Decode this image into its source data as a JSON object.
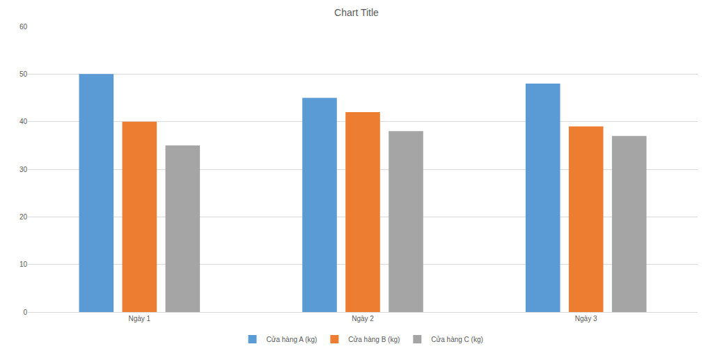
{
  "chart_data": {
    "type": "bar",
    "title": "Chart Title",
    "categories": [
      "Ngày 1",
      "Ngày 2",
      "Ngày 3"
    ],
    "series": [
      {
        "name": "Cửa hàng A (kg)",
        "color": "#5b9bd5",
        "values": [
          50,
          45,
          48
        ]
      },
      {
        "name": "Cửa hàng B (kg)",
        "color": "#ed7d31",
        "values": [
          40,
          42,
          39
        ]
      },
      {
        "name": "Cửa hàng C (kg)",
        "color": "#a5a5a5",
        "values": [
          35,
          38,
          37
        ]
      }
    ],
    "ylim": [
      0,
      60
    ],
    "yticks": [
      0,
      10,
      20,
      30,
      40,
      50,
      60
    ],
    "grid": true,
    "legend": "bottom"
  }
}
